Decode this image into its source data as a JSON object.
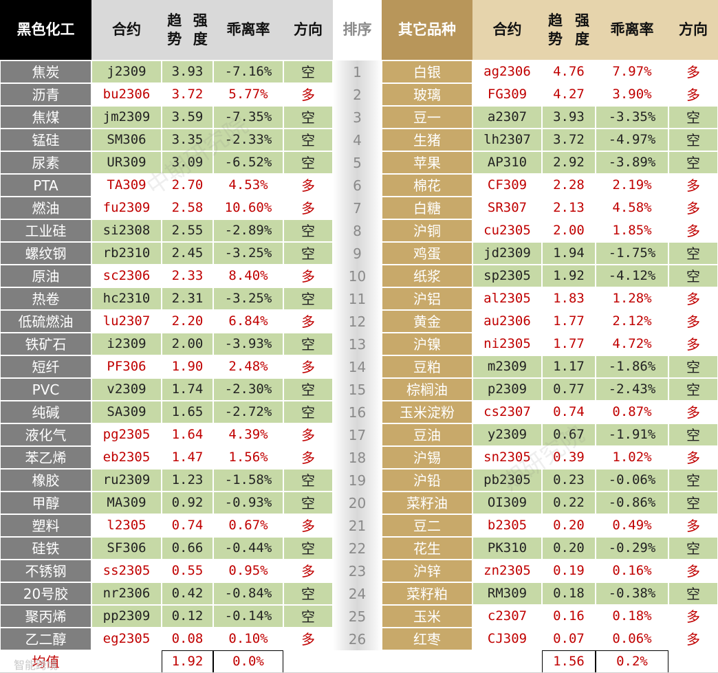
{
  "headers": {
    "left": {
      "group": "黑色化工",
      "contract": "合约",
      "trend": [
        "趋势",
        "强度"
      ],
      "deviation": "乖离率",
      "direction": "方向"
    },
    "rank": "排序",
    "right": {
      "group": [
        "其它",
        "品种"
      ],
      "contract": "合约",
      "trend": [
        "趋势",
        "强度"
      ],
      "deviation": "乖离率",
      "direction": "方向"
    }
  },
  "left_rows": [
    {
      "name": "焦炭",
      "contract": "j2309",
      "strength": "3.93",
      "deviation": "-7.16%",
      "direction": "空"
    },
    {
      "name": "沥青",
      "contract": "bu2306",
      "strength": "3.72",
      "deviation": "5.77%",
      "direction": "多"
    },
    {
      "name": "焦煤",
      "contract": "jm2309",
      "strength": "3.59",
      "deviation": "-7.35%",
      "direction": "空"
    },
    {
      "name": "锰硅",
      "contract": "SM306",
      "strength": "3.35",
      "deviation": "-2.33%",
      "direction": "空"
    },
    {
      "name": "尿素",
      "contract": "UR309",
      "strength": "3.09",
      "deviation": "-6.52%",
      "direction": "空"
    },
    {
      "name": "PTA",
      "contract": "TA309",
      "strength": "2.70",
      "deviation": "4.53%",
      "direction": "多"
    },
    {
      "name": "燃油",
      "contract": "fu2309",
      "strength": "2.58",
      "deviation": "10.60%",
      "direction": "多"
    },
    {
      "name": "工业硅",
      "contract": "si2308",
      "strength": "2.55",
      "deviation": "-2.89%",
      "direction": "空"
    },
    {
      "name": "螺纹钢",
      "contract": "rb2310",
      "strength": "2.45",
      "deviation": "-3.25%",
      "direction": "空"
    },
    {
      "name": "原油",
      "contract": "sc2306",
      "strength": "2.33",
      "deviation": "8.40%",
      "direction": "多"
    },
    {
      "name": "热卷",
      "contract": "hc2310",
      "strength": "2.31",
      "deviation": "-3.25%",
      "direction": "空"
    },
    {
      "name": "低硫燃油",
      "contract": "lu2307",
      "strength": "2.20",
      "deviation": "6.84%",
      "direction": "多"
    },
    {
      "name": "铁矿石",
      "contract": "i2309",
      "strength": "2.00",
      "deviation": "-3.93%",
      "direction": "空"
    },
    {
      "name": "短纤",
      "contract": "PF306",
      "strength": "1.90",
      "deviation": "2.48%",
      "direction": "多"
    },
    {
      "name": "PVC",
      "contract": "v2309",
      "strength": "1.74",
      "deviation": "-2.30%",
      "direction": "空"
    },
    {
      "name": "纯碱",
      "contract": "SA309",
      "strength": "1.65",
      "deviation": "-2.72%",
      "direction": "空"
    },
    {
      "name": "液化气",
      "contract": "pg2305",
      "strength": "1.64",
      "deviation": "4.39%",
      "direction": "多"
    },
    {
      "name": "苯乙烯",
      "contract": "eb2305",
      "strength": "1.47",
      "deviation": "1.56%",
      "direction": "多"
    },
    {
      "name": "橡胶",
      "contract": "ru2309",
      "strength": "1.23",
      "deviation": "-1.58%",
      "direction": "空"
    },
    {
      "name": "甲醇",
      "contract": "MA309",
      "strength": "0.92",
      "deviation": "-0.93%",
      "direction": "空"
    },
    {
      "name": "塑料",
      "contract": "l2305",
      "strength": "0.74",
      "deviation": "0.67%",
      "direction": "多"
    },
    {
      "name": "硅铁",
      "contract": "SF306",
      "strength": "0.66",
      "deviation": "-0.44%",
      "direction": "空"
    },
    {
      "name": "不锈钢",
      "contract": "ss2305",
      "strength": "0.55",
      "deviation": "0.95%",
      "direction": "多"
    },
    {
      "name": "20号胶",
      "contract": "nr2306",
      "strength": "0.42",
      "deviation": "-0.84%",
      "direction": "空"
    },
    {
      "name": "聚丙烯",
      "contract": "pp2309",
      "strength": "0.12",
      "deviation": "-0.14%",
      "direction": "空"
    },
    {
      "name": "乙二醇",
      "contract": "eg2305",
      "strength": "0.08",
      "deviation": "0.10%",
      "direction": "多"
    }
  ],
  "ranks": [
    "1",
    "2",
    "3",
    "4",
    "5",
    "6",
    "7",
    "8",
    "9",
    "10",
    "11",
    "12",
    "13",
    "14",
    "15",
    "16",
    "17",
    "18",
    "19",
    "20",
    "21",
    "22",
    "23",
    "24",
    "25",
    "26"
  ],
  "right_rows": [
    {
      "name": "白银",
      "contract": "ag2306",
      "strength": "4.76",
      "deviation": "7.97%",
      "direction": "多"
    },
    {
      "name": "玻璃",
      "contract": "FG309",
      "strength": "4.27",
      "deviation": "3.90%",
      "direction": "多"
    },
    {
      "name": "豆一",
      "contract": "a2307",
      "strength": "3.93",
      "deviation": "-3.35%",
      "direction": "空"
    },
    {
      "name": "生猪",
      "contract": "lh2307",
      "strength": "3.72",
      "deviation": "-4.97%",
      "direction": "空"
    },
    {
      "name": "苹果",
      "contract": "AP310",
      "strength": "2.92",
      "deviation": "-3.89%",
      "direction": "空"
    },
    {
      "name": "棉花",
      "contract": "CF309",
      "strength": "2.28",
      "deviation": "2.19%",
      "direction": "多"
    },
    {
      "name": "白糖",
      "contract": "SR307",
      "strength": "2.13",
      "deviation": "4.58%",
      "direction": "多"
    },
    {
      "name": "沪铜",
      "contract": "cu2305",
      "strength": "2.00",
      "deviation": "1.85%",
      "direction": "多"
    },
    {
      "name": "鸡蛋",
      "contract": "jd2309",
      "strength": "1.94",
      "deviation": "-1.75%",
      "direction": "空"
    },
    {
      "name": "纸浆",
      "contract": "sp2305",
      "strength": "1.92",
      "deviation": "-4.12%",
      "direction": "空"
    },
    {
      "name": "沪铝",
      "contract": "al2305",
      "strength": "1.83",
      "deviation": "1.28%",
      "direction": "多"
    },
    {
      "name": "黄金",
      "contract": "au2306",
      "strength": "1.77",
      "deviation": "2.12%",
      "direction": "多"
    },
    {
      "name": "沪镍",
      "contract": "ni2305",
      "strength": "1.77",
      "deviation": "4.72%",
      "direction": "多"
    },
    {
      "name": "豆粕",
      "contract": "m2309",
      "strength": "1.17",
      "deviation": "-1.86%",
      "direction": "空"
    },
    {
      "name": "棕榈油",
      "contract": "p2309",
      "strength": "0.77",
      "deviation": "-2.43%",
      "direction": "空"
    },
    {
      "name": "玉米淀粉",
      "contract": "cs2307",
      "strength": "0.74",
      "deviation": "0.87%",
      "direction": "多"
    },
    {
      "name": "豆油",
      "contract": "y2309",
      "strength": "0.67",
      "deviation": "-1.91%",
      "direction": "空"
    },
    {
      "name": "沪锡",
      "contract": "sn2305",
      "strength": "0.39",
      "deviation": "1.02%",
      "direction": "多"
    },
    {
      "name": "沪铅",
      "contract": "pb2305",
      "strength": "0.23",
      "deviation": "-0.06%",
      "direction": "空"
    },
    {
      "name": "菜籽油",
      "contract": "OI309",
      "strength": "0.22",
      "deviation": "-0.86%",
      "direction": "空"
    },
    {
      "name": "豆二",
      "contract": "b2305",
      "strength": "0.20",
      "deviation": "0.49%",
      "direction": "多"
    },
    {
      "name": "花生",
      "contract": "PK310",
      "strength": "0.20",
      "deviation": "-0.29%",
      "direction": "空"
    },
    {
      "name": "沪锌",
      "contract": "zn2305",
      "strength": "0.19",
      "deviation": "0.16%",
      "direction": "多"
    },
    {
      "name": "菜籽粕",
      "contract": "RM309",
      "strength": "0.18",
      "deviation": "-0.38%",
      "direction": "空"
    },
    {
      "name": "玉米",
      "contract": "c2307",
      "strength": "0.16",
      "deviation": "0.18%",
      "direction": "多"
    },
    {
      "name": "红枣",
      "contract": "CJ309",
      "strength": "0.07",
      "deviation": "0.06%",
      "direction": "多"
    }
  ],
  "footer": {
    "left_label": "均值",
    "left_strength": "1.92",
    "left_deviation": "0.0%",
    "right_strength": "1.56",
    "right_deviation": "0.2%"
  },
  "watermarks": {
    "left": "中期研究院",
    "right": "期研究院",
    "footer": "智能跨境"
  },
  "colors": {
    "long_text": "#c00000",
    "short_text": "#222222",
    "short_row_bg": "#c6d9a6",
    "long_row_bg": "#ffffff",
    "left_name_bg": "#7f7f7f",
    "header_left_bg": "#000000",
    "header_bg": "#d9d9d9",
    "right_name_bg": "#c8a96a",
    "right_header_bg": "#b8965a",
    "right_header_light": "#e6d4ac"
  }
}
